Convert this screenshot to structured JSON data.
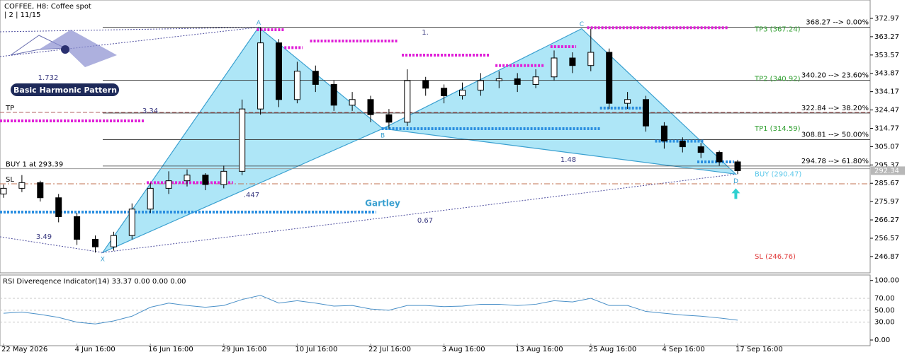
{
  "chart_data": {
    "type": "candlestick",
    "title": "COFFEE, H8:  Coffee spot",
    "subtitle": "| 2 | 11/15",
    "categories": [
      "22 May 2026",
      null,
      null,
      null,
      "4 Jun 16:00",
      null,
      null,
      null,
      "16 Jun 16:00",
      null,
      null,
      null,
      "29 Jun 16:00",
      null,
      null,
      null,
      "10 Jul 16:00",
      null,
      null,
      null,
      "22 Jul 16:00",
      null,
      null,
      null,
      "3 Aug 16:00",
      null,
      null,
      null,
      "13 Aug 16:00",
      null,
      null,
      null,
      "25 Aug 16:00",
      null,
      null,
      null,
      "4 Sep 16:00",
      null,
      null,
      null,
      "17 Sep 16:00"
    ],
    "open": [
      280,
      283,
      286,
      278,
      268,
      256,
      252,
      258,
      272,
      283,
      287,
      290,
      285,
      292,
      325,
      360,
      330,
      345,
      338,
      327,
      330,
      322,
      318,
      340,
      336,
      332,
      335,
      340,
      341,
      338,
      342,
      352,
      348,
      355,
      328,
      330,
      316,
      308,
      305,
      302,
      297
    ],
    "high": [
      285,
      290,
      287,
      280,
      270,
      258,
      260,
      275,
      286,
      292,
      293,
      291,
      295,
      330,
      368.27,
      362,
      350,
      348,
      340,
      334,
      332,
      325,
      346,
      342,
      338,
      339,
      344,
      345,
      344,
      346,
      356,
      355,
      367.5,
      357,
      334,
      332,
      318,
      310,
      307,
      303,
      298
    ],
    "low": [
      278,
      281,
      276,
      265,
      253,
      249,
      250,
      256,
      270,
      280,
      284,
      282,
      283,
      290,
      322,
      326,
      328,
      334,
      324,
      324,
      318,
      314.6,
      316,
      332,
      328,
      330,
      332,
      336,
      334,
      336,
      340,
      344,
      345,
      325,
      325,
      313,
      304,
      302,
      299,
      295,
      290.5
    ],
    "close": [
      283,
      286,
      278,
      268,
      256,
      252,
      258,
      272,
      283,
      287,
      290,
      285,
      292,
      325,
      360,
      330,
      345,
      338,
      327,
      330,
      322,
      318,
      340,
      336,
      332,
      335,
      340,
      341,
      338,
      342,
      352,
      348,
      355,
      328,
      330,
      316,
      308,
      305,
      302,
      297,
      292.34
    ],
    "ylim": [
      238.6,
      382.7
    ],
    "yticks": [
      372.97,
      363.27,
      353.57,
      343.87,
      334.17,
      324.47,
      314.77,
      305.07,
      295.37,
      285.67,
      275.97,
      266.27,
      256.57,
      246.87
    ],
    "last_price": 292.34,
    "fib_levels": [
      {
        "value": 368.27,
        "label": "368.27 --> 0.00%"
      },
      {
        "value": 340.2,
        "label": "340.20 --> 23.60%"
      },
      {
        "value": 322.84,
        "label": "322.84 --> 38.20%"
      },
      {
        "value": 308.81,
        "label": "308.81 --> 50.00%"
      },
      {
        "value": 294.78,
        "label": "294.78 --> 61.80%"
      }
    ],
    "targets": [
      {
        "label": "TP3 (367.24)",
        "value": 367.24,
        "color": "#2e9e2e"
      },
      {
        "label": "TP2 (340.92)",
        "value": 340.92,
        "color": "#2e9e2e"
      },
      {
        "label": "TP1 (314.59)",
        "value": 314.59,
        "color": "#2e9e2e"
      },
      {
        "label": "BUY (290.47)",
        "value": 290.47,
        "color": "#5cc8ea"
      },
      {
        "label": "SL (246.76)",
        "value": 246.76,
        "color": "#e03a3a"
      }
    ],
    "entry": {
      "label": "BUY 1 at 293.39",
      "value": 293.39
    },
    "tp_line": {
      "label": "TP",
      "value": 323.2
    },
    "sl_line": {
      "label": "SL",
      "value": 285.4
    },
    "pattern": {
      "name": "Gartley",
      "color": "#aee6f7",
      "points": [
        {
          "label": "X",
          "x": 5.4,
          "y": 249
        },
        {
          "label": "A",
          "x": 13.9,
          "y": 368.27
        },
        {
          "label": "B",
          "x": 20.66,
          "y": 314.6
        },
        {
          "label": "C",
          "x": 31.5,
          "y": 367.5
        },
        {
          "label": "D",
          "x": 39.9,
          "y": 290.5
        }
      ]
    },
    "annotations": [
      "1.",
      "1.48",
      ".447",
      "0.67",
      "3.34",
      "3.49",
      "1.732"
    ],
    "logo": "Basic Harmonic Pattern",
    "dotted_levels": [
      {
        "value": 367,
        "from": 13.8,
        "to": 15.3,
        "color": "#e020d8"
      },
      {
        "value": 357.5,
        "from": 15.3,
        "to": 16.3,
        "color": "#e020d8"
      },
      {
        "value": 361,
        "from": 16.7,
        "to": 21.5,
        "color": "#e020d8"
      },
      {
        "value": 353.5,
        "from": 21.7,
        "to": 26.5,
        "color": "#e020d8"
      },
      {
        "value": 348,
        "from": 26.8,
        "to": 29.5,
        "color": "#e020d8"
      },
      {
        "value": 358,
        "from": 29.8,
        "to": 31.2,
        "color": "#e020d8"
      },
      {
        "value": 368,
        "from": 31.8,
        "to": 39.5,
        "color": "#e020d8"
      },
      {
        "value": 318.7,
        "from": -0.2,
        "to": 7.7,
        "color": "#e020d8"
      },
      {
        "value": 286,
        "from": 7.8,
        "to": 12.5,
        "color": "#e020d8"
      },
      {
        "value": 314.6,
        "from": 20.6,
        "to": 32.5,
        "color": "#2a8ee0"
      },
      {
        "value": 325.5,
        "from": 32.5,
        "to": 35.2,
        "color": "#2a8ee0"
      },
      {
        "value": 308,
        "from": 35.5,
        "to": 38.2,
        "color": "#2a8ee0"
      },
      {
        "value": 297,
        "from": 37.8,
        "to": 39.8,
        "color": "#2a8ee0"
      },
      {
        "value": 270.4,
        "from": -0.2,
        "to": 20.3,
        "color": "#2a8ee0"
      }
    ],
    "rsi": {
      "title": "RSI Divereqence Indicator(14) 33.37 0.00 0.00 0.00",
      "color": "#4a90c8",
      "values": [
        45,
        47,
        43,
        38,
        30,
        27,
        32,
        40,
        55,
        62,
        58,
        55,
        58,
        68,
        75,
        62,
        66,
        62,
        57,
        58,
        52,
        50,
        58,
        58,
        56,
        57,
        60,
        60,
        58,
        60,
        66,
        64,
        70,
        58,
        58,
        48,
        45,
        42,
        40,
        37,
        33.37
      ],
      "ylim": [
        -10.7,
        108
      ],
      "yticks": [
        {
          "value": 100,
          "label": "100.00"
        },
        {
          "value": 70,
          "label": "70.00"
        },
        {
          "value": 50,
          "label": "50.00"
        },
        {
          "value": 30,
          "label": "30.00"
        },
        {
          "value": 0,
          "label": "0.00"
        }
      ]
    }
  }
}
